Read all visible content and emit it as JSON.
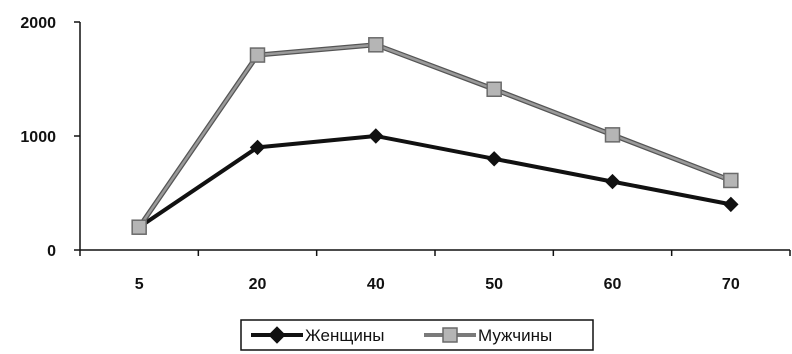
{
  "chart_data": {
    "type": "line",
    "title": "",
    "xlabel": "",
    "ylabel": "",
    "categories": [
      "5",
      "20",
      "40",
      "50",
      "60",
      "70"
    ],
    "ylim": [
      0,
      2000
    ],
    "yticks": [
      "0",
      "1000",
      "2000"
    ],
    "grid": false,
    "legend_position": "bottom",
    "series": [
      {
        "name": "Женщины",
        "values": [
          200,
          900,
          1000,
          800,
          600,
          400
        ],
        "color": "#111111",
        "marker": "diamond"
      },
      {
        "name": "Мужчины",
        "values": [
          200,
          1710,
          1800,
          1410,
          1010,
          610
        ],
        "color": "#7a7a7a",
        "marker": "square"
      }
    ]
  }
}
